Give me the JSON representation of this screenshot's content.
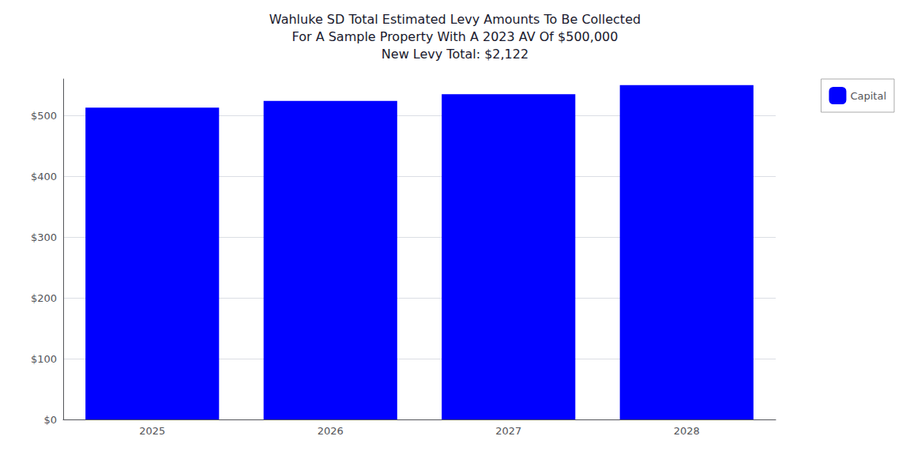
{
  "chart_data": {
    "type": "bar",
    "title": "Wahluke SD Total Estimated Levy Amounts To Be Collected\nFor A Sample Property With A 2023 AV Of $500,000\nNew Levy Total: $2,122",
    "categories": [
      "2025",
      "2026",
      "2027",
      "2028"
    ],
    "series": [
      {
        "name": "Capital",
        "color": "#0000ff",
        "values": [
          513,
          524,
          535,
          550
        ]
      }
    ],
    "ylim": [
      0,
      560
    ],
    "yticks": [
      {
        "value": 0,
        "label": "$0"
      },
      {
        "value": 100,
        "label": "$100"
      },
      {
        "value": 200,
        "label": "$200"
      },
      {
        "value": 300,
        "label": "$300"
      },
      {
        "value": 400,
        "label": "$400"
      },
      {
        "value": 500,
        "label": "$500"
      }
    ],
    "grid": true,
    "legend": "right"
  }
}
